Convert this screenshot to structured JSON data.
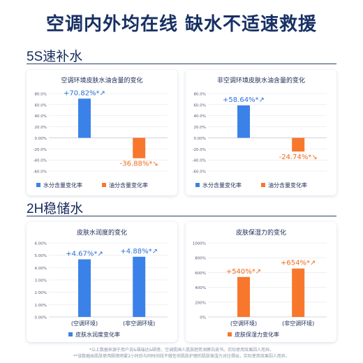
{
  "headline": "空调内外均在线 缺水不适速救援",
  "section1": {
    "title": "5S速补水"
  },
  "section2": {
    "title": "2H稳储水"
  },
  "footnotes": [
    "*以上数据来源于用户说&福瑞达&颐莲，空调肌国人肌肤趋势洞察白皮书。实际使用效果因人而异。",
    "**该数据由肌肤使用颐莲喷雾2小时后与同时间段不做任何肌肤护理的肌肤保湿力对比得出，实际使用效果因人而异。"
  ],
  "colors": {
    "blue": "#3b82e8",
    "orange": "#f7772d",
    "label_blue": "#2f6fd6",
    "label_orange": "#f26a1b"
  },
  "chart_data": [
    {
      "type": "bar",
      "title": "空调环境皮肤水油含量的变化",
      "categories": [
        "水分含量变化率",
        "油分含量变化率"
      ],
      "values": [
        70.82,
        -36.88
      ],
      "data_labels": [
        "+70.82%*",
        "-36.88%*"
      ],
      "yticks": [
        "80.0%",
        "60.0%",
        "40.0%",
        "20.0%",
        "0.00%",
        "-20.0%",
        "-40.0%",
        "-60.0%"
      ],
      "ylim": [
        -60,
        80
      ],
      "legend": [
        "水分含量变化率",
        "油分含量变化率"
      ],
      "legend_position": "bottom",
      "grid": true
    },
    {
      "type": "bar",
      "title": "非空调环境皮肤水油含量的变化",
      "categories": [
        "水分含量变化率",
        "油分含量变化率"
      ],
      "values": [
        58.64,
        -24.74
      ],
      "data_labels": [
        "+58.64%*",
        "-24.74%*"
      ],
      "yticks": [
        "80.0%",
        "60.0%",
        "40.0%",
        "20.0%",
        "0.00%",
        "-20.0%",
        "-40.0%",
        "-60.0%"
      ],
      "ylim": [
        -60,
        80
      ],
      "legend": [
        "水分含量变化率",
        "油分含量变化率"
      ],
      "legend_position": "bottom",
      "grid": true
    },
    {
      "type": "bar",
      "title": "皮肤水润度的变化",
      "categories": [
        "(空调环境)",
        "(非空调环境)"
      ],
      "values": [
        4.67,
        4.88
      ],
      "data_labels": [
        "+4.67%*",
        "+4.88%*"
      ],
      "yticks": [
        "6.00%",
        "5.00%",
        "4.00%",
        "3.00%",
        "2.00%",
        "1.00%",
        "0.00%"
      ],
      "ylim": [
        0,
        6
      ],
      "legend": [
        "皮肤水润度变化率"
      ],
      "legend_position": "bottom",
      "grid": true
    },
    {
      "type": "bar",
      "title": "皮肤保湿力的变化",
      "categories": [
        "(空调环境)",
        "(非空调环境)"
      ],
      "values": [
        540,
        654
      ],
      "data_labels": [
        "+540%*",
        "+654%*"
      ],
      "yticks": [
        "1000%",
        "800%",
        "600%",
        "400%",
        "200%",
        "0%"
      ],
      "ylim": [
        0,
        1000
      ],
      "legend": [
        "皮肤保湿力变化率"
      ],
      "legend_position": "bottom",
      "grid": true
    }
  ]
}
